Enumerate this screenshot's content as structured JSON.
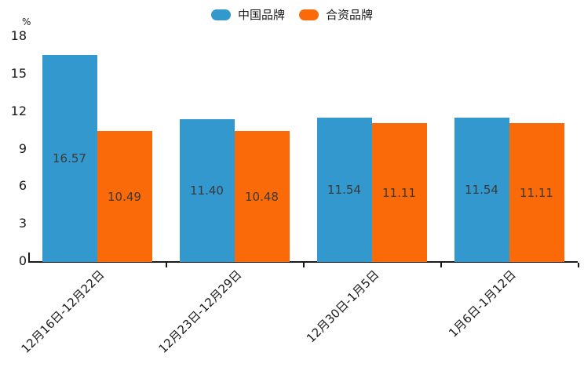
{
  "chart_data": {
    "type": "bar",
    "title": "",
    "ylabel": "%",
    "xlabel": "",
    "categories": [
      "12月16日-12月22日",
      "12月23日-12月29日",
      "12月30日-1月5日",
      "1月6日-1月12日"
    ],
    "series": [
      {
        "name": "中国品牌",
        "color": "#3398CE",
        "values": [
          16.57,
          11.4,
          11.54,
          11.54
        ],
        "value_labels": [
          "16.57",
          "11.40",
          "11.54",
          "11.54"
        ]
      },
      {
        "name": "合资品牌",
        "color": "#FB6A09",
        "values": [
          10.49,
          10.48,
          11.11,
          11.11
        ],
        "value_labels": [
          "10.49",
          "10.48",
          "11.11",
          "11.11"
        ]
      }
    ],
    "ylim": [
      0,
      18
    ],
    "yticks": [
      "0",
      "3",
      "6",
      "9",
      "12",
      "15",
      "18"
    ],
    "grid": false,
    "legend_position": "top-center",
    "value_label_position": "inside-center",
    "xlabel_rotation_deg": 45,
    "axis_color": "#1a1a1a",
    "background_color": "#ffffff"
  }
}
